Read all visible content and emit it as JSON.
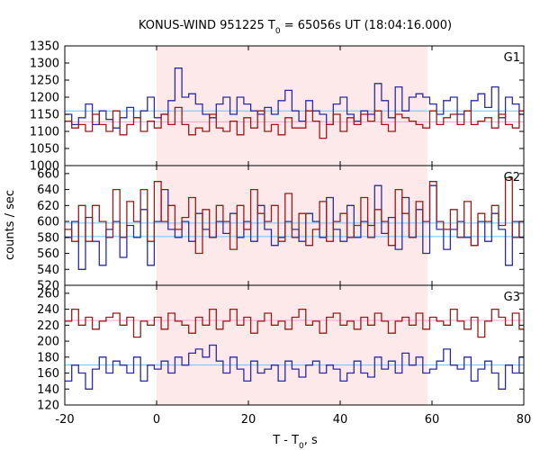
{
  "chart_data": {
    "type": "line",
    "title_main": "KONUS-WIND 951225 T",
    "title_sub": "0",
    "title_tail": " = 65056s UT (18:04:16.000)",
    "xlabel_main": "T - T",
    "xlabel_sub": "0",
    "xlabel_tail": ", s",
    "ylabel": "counts / sec",
    "xlim": [
      -20,
      80
    ],
    "xticks": [
      "-20",
      "0",
      "20",
      "40",
      "60",
      "80"
    ],
    "highlight_interval": [
      0,
      59
    ],
    "highlight_color": "#fde8ea",
    "bin_start": -20,
    "bin_width": 1.5,
    "panels": [
      {
        "label": "G1",
        "ylim": [
          1000,
          1350
        ],
        "yticks": [
          "1000",
          "1050",
          "1100",
          "1150",
          "1200",
          "1250",
          "1300",
          "1350"
        ],
        "series": [
          {
            "color": "#2b2ba6",
            "values": [
              1150,
              1120,
              1140,
              1180,
              1120,
              1160,
              1135,
              1110,
              1140,
              1170,
              1140,
              1160,
              1200,
              1140,
              1150,
              1190,
              1285,
              1200,
              1210,
              1180,
              1150,
              1140,
              1180,
              1200,
              1150,
              1200,
              1180,
              1160,
              1150,
              1170,
              1150,
              1190,
              1220,
              1160,
              1130,
              1190,
              1160,
              1150,
              1120,
              1180,
              1200,
              1150,
              1130,
              1160,
              1150,
              1240,
              1190,
              1140,
              1230,
              1160,
              1200,
              1210,
              1200,
              1180,
              1150,
              1190,
              1200,
              1150,
              1160,
              1190,
              1210,
              1170,
              1230,
              1140,
              1200,
              1180,
              1150,
              1170,
              1120,
              1150,
              1180,
              1160,
              1140
            ]
          },
          {
            "color": "#a01818",
            "values": [
              1130,
              1110,
              1120,
              1100,
              1150,
              1120,
              1100,
              1160,
              1090,
              1120,
              1140,
              1100,
              1130,
              1110,
              1150,
              1120,
              1170,
              1120,
              1090,
              1110,
              1100,
              1150,
              1110,
              1100,
              1130,
              1090,
              1140,
              1110,
              1160,
              1100,
              1120,
              1090,
              1140,
              1110,
              1110,
              1160,
              1130,
              1080,
              1120,
              1150,
              1100,
              1140,
              1120,
              1150,
              1130,
              1160,
              1120,
              1100,
              1150,
              1140,
              1130,
              1120,
              1110,
              1160,
              1120,
              1140,
              1150,
              1120,
              1160,
              1120,
              1130,
              1140,
              1110,
              1150,
              1120,
              1110,
              1160,
              1130,
              1140,
              1130,
              1150,
              1130,
              1170
            ]
          }
        ],
        "means": [
          {
            "value": 1160,
            "color": "#6cc4ff"
          },
          {
            "value": 1128,
            "color": "#ff9fd6"
          }
        ]
      },
      {
        "label": "G2",
        "ylim": [
          520,
          670
        ],
        "yticks": [
          "520",
          "540",
          "560",
          "580",
          "600",
          "620",
          "640",
          "660"
        ],
        "series": [
          {
            "color": "#2b2ba6",
            "values": [
              580,
              600,
              540,
              605,
              575,
              545,
              590,
              600,
              555,
              595,
              580,
              615,
              545,
              600,
              640,
              590,
              580,
              600,
              575,
              610,
              590,
              580,
              600,
              585,
              610,
              580,
              600,
              575,
              620,
              590,
              570,
              580,
              600,
              590,
              575,
              610,
              600,
              580,
              630,
              590,
              575,
              620,
              580,
              600,
              595,
              645,
              585,
              605,
              565,
              630,
              580,
              615,
              560,
              645,
              590,
              565,
              590,
              600,
              580,
              570,
              600,
              575,
              610,
              590,
              545,
              600,
              580,
              560,
              600,
              585,
              570,
              600,
              590
            ]
          },
          {
            "color": "#a01818",
            "values": [
              590,
              575,
              620,
              575,
              620,
              600,
              580,
              640,
              580,
              625,
              600,
              640,
              575,
              650,
              600,
              620,
              590,
              605,
              630,
              560,
              615,
              580,
              620,
              600,
              565,
              620,
              590,
              640,
              610,
              600,
              620,
              575,
              635,
              580,
              610,
              570,
              590,
              625,
              575,
              600,
              610,
              580,
              595,
              630,
              580,
              615,
              600,
              570,
              640,
              610,
              580,
              625,
              600,
              650,
              600,
              590,
              615,
              580,
              625,
              570,
              610,
              600,
              620,
              595,
              655,
              580,
              600,
              615,
              630,
              600,
              620,
              625,
              605
            ]
          }
        ],
        "means": [
          {
            "value": 598,
            "color": "#6cc4ff"
          },
          {
            "value": 581,
            "color": "#6cc4ff"
          }
        ]
      },
      {
        "label": "G3",
        "ylim": [
          120,
          270
        ],
        "yticks": [
          "120",
          "140",
          "160",
          "180",
          "200",
          "220",
          "240",
          "260"
        ],
        "series": [
          {
            "color": "#2b2ba6",
            "values": [
              150,
              170,
              160,
              140,
              165,
              180,
              160,
              175,
              170,
              160,
              180,
              150,
              170,
              165,
              175,
              160,
              180,
              170,
              185,
              190,
              180,
              195,
              175,
              160,
              180,
              165,
              150,
              175,
              160,
              165,
              170,
              150,
              175,
              165,
              155,
              170,
              175,
              160,
              170,
              165,
              150,
              160,
              175,
              160,
              155,
              180,
              165,
              175,
              160,
              185,
              170,
              180,
              160,
              165,
              175,
              190,
              170,
              165,
              180,
              150,
              165,
              175,
              160,
              140,
              170,
              160,
              180,
              165,
              145,
              175,
              160,
              180,
              170
            ]
          },
          {
            "color": "#a01818",
            "values": [
              225,
              240,
              220,
              230,
              215,
              225,
              230,
              235,
              220,
              230,
              205,
              225,
              220,
              230,
              215,
              235,
              225,
              220,
              210,
              230,
              220,
              240,
              215,
              225,
              240,
              220,
              230,
              210,
              225,
              235,
              220,
              225,
              215,
              230,
              240,
              220,
              225,
              210,
              230,
              235,
              220,
              225,
              215,
              230,
              220,
              235,
              225,
              210,
              225,
              230,
              220,
              235,
              215,
              230,
              225,
              220,
              240,
              225,
              215,
              230,
              205,
              225,
              240,
              230,
              220,
              235,
              215,
              230,
              225,
              245,
              220,
              230,
              225
            ]
          }
        ],
        "means": [
          {
            "value": 226,
            "color": "#ff9fd6"
          },
          {
            "value": 170,
            "color": "#6cc4ff"
          }
        ]
      }
    ]
  }
}
